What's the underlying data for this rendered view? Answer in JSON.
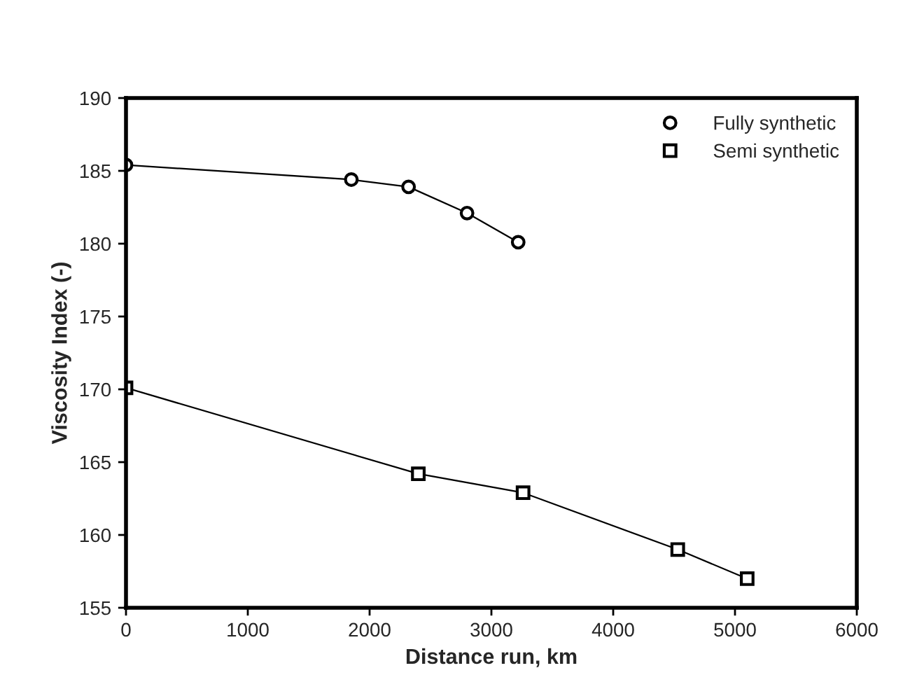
{
  "chart_data": {
    "type": "line",
    "xlabel": "Distance run, km",
    "ylabel": "Viscosity Index (-)",
    "xlim": [
      0,
      6000
    ],
    "xticks": [
      0,
      1000,
      2000,
      3000,
      4000,
      5000,
      6000
    ],
    "ylim": [
      155,
      190
    ],
    "yticks": [
      155,
      160,
      165,
      170,
      175,
      180,
      185,
      190
    ],
    "grid": false,
    "legend": "top right",
    "line_style": "solid",
    "series": [
      {
        "name": "Fully synthetic",
        "color": "#000000",
        "marker": "circle",
        "x": [
          0,
          1850,
          2320,
          2800,
          3220
        ],
        "values": [
          185.4,
          184.4,
          183.9,
          182.1,
          180.1
        ]
      },
      {
        "name": "Semi synthetic",
        "color": "#000000",
        "marker": "square",
        "x": [
          0,
          2400,
          3260,
          4530,
          5100
        ],
        "values": [
          170.1,
          164.2,
          162.9,
          159.0,
          157.0
        ]
      }
    ]
  }
}
